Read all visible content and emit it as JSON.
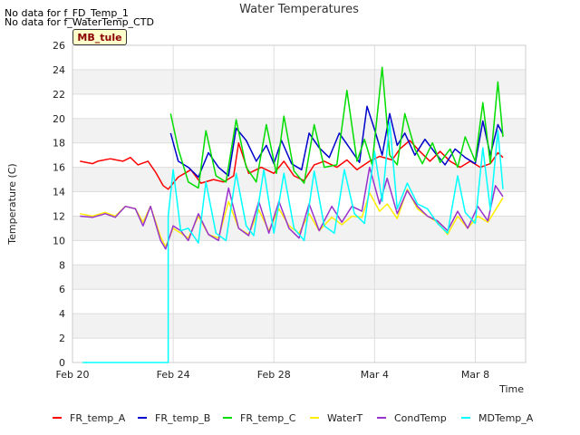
{
  "notices": [
    "No data for f_FD_Temp_1",
    "No data for f_WaterTemp_CTD"
  ],
  "tag_label": "MB_tule",
  "chart_data": {
    "type": "line",
    "title": "Water Temperatures",
    "xlabel": "Time",
    "ylabel": "Temperature (C)",
    "x_ticks": [
      "Feb 20",
      "Feb 24",
      "Feb 28",
      "Mar 4",
      "Mar 8"
    ],
    "x_tick_days": [
      0,
      4,
      8,
      12,
      16
    ],
    "xlim_days": [
      0,
      18
    ],
    "ylim": [
      0,
      26
    ],
    "y_ticks": [
      0,
      2,
      4,
      6,
      8,
      10,
      12,
      14,
      16,
      18,
      20,
      22,
      24,
      26
    ],
    "grid": true,
    "legend_position": "bottom",
    "series": [
      {
        "name": "FR_temp_A",
        "color": "#ff0000",
        "points": [
          [
            0.3,
            16.5
          ],
          [
            0.8,
            16.3
          ],
          [
            1.0,
            16.5
          ],
          [
            1.5,
            16.7
          ],
          [
            2.0,
            16.5
          ],
          [
            2.3,
            16.8
          ],
          [
            2.6,
            16.2
          ],
          [
            3.0,
            16.5
          ],
          [
            3.3,
            15.6
          ],
          [
            3.6,
            14.5
          ],
          [
            3.8,
            14.2
          ],
          [
            4.2,
            15.2
          ],
          [
            4.7,
            15.8
          ],
          [
            5.1,
            14.7
          ],
          [
            5.6,
            15.0
          ],
          [
            6.0,
            14.8
          ],
          [
            6.4,
            15.3
          ],
          [
            6.6,
            18.0
          ],
          [
            7.0,
            15.5
          ],
          [
            7.5,
            16.0
          ],
          [
            8.0,
            15.5
          ],
          [
            8.4,
            16.5
          ],
          [
            8.8,
            15.3
          ],
          [
            9.2,
            14.9
          ],
          [
            9.6,
            16.2
          ],
          [
            10.0,
            16.5
          ],
          [
            10.5,
            16.0
          ],
          [
            10.9,
            16.6
          ],
          [
            11.3,
            15.8
          ],
          [
            11.8,
            16.5
          ],
          [
            12.2,
            16.9
          ],
          [
            12.7,
            16.6
          ],
          [
            13.0,
            17.5
          ],
          [
            13.4,
            18.2
          ],
          [
            13.8,
            17.3
          ],
          [
            14.2,
            16.5
          ],
          [
            14.6,
            17.3
          ],
          [
            15.0,
            16.5
          ],
          [
            15.4,
            16.0
          ],
          [
            15.8,
            16.5
          ],
          [
            16.2,
            16.0
          ],
          [
            16.6,
            16.3
          ],
          [
            16.9,
            17.2
          ],
          [
            17.1,
            16.8
          ]
        ]
      },
      {
        "name": "FR_temp_B",
        "color": "#0000cc",
        "points": [
          [
            3.9,
            18.8
          ],
          [
            4.2,
            16.5
          ],
          [
            4.6,
            16.0
          ],
          [
            5.0,
            15.2
          ],
          [
            5.4,
            17.2
          ],
          [
            5.8,
            16.0
          ],
          [
            6.2,
            15.3
          ],
          [
            6.5,
            19.2
          ],
          [
            6.9,
            18.2
          ],
          [
            7.3,
            16.5
          ],
          [
            7.7,
            17.8
          ],
          [
            8.0,
            16.3
          ],
          [
            8.3,
            18.2
          ],
          [
            8.7,
            16.3
          ],
          [
            9.1,
            15.8
          ],
          [
            9.4,
            18.8
          ],
          [
            9.8,
            17.6
          ],
          [
            10.2,
            16.8
          ],
          [
            10.6,
            18.8
          ],
          [
            11.0,
            17.6
          ],
          [
            11.4,
            16.4
          ],
          [
            11.7,
            21.0
          ],
          [
            12.0,
            19.1
          ],
          [
            12.3,
            17.0
          ],
          [
            12.6,
            20.4
          ],
          [
            12.9,
            17.8
          ],
          [
            13.2,
            18.8
          ],
          [
            13.6,
            17.0
          ],
          [
            14.0,
            18.3
          ],
          [
            14.4,
            17.2
          ],
          [
            14.8,
            16.2
          ],
          [
            15.2,
            17.5
          ],
          [
            15.6,
            16.8
          ],
          [
            16.0,
            16.3
          ],
          [
            16.3,
            19.8
          ],
          [
            16.6,
            17.0
          ],
          [
            16.9,
            19.5
          ],
          [
            17.1,
            18.7
          ]
        ]
      },
      {
        "name": "FR_temp_C",
        "color": "#00dd00",
        "points": [
          [
            3.9,
            20.4
          ],
          [
            4.2,
            17.5
          ],
          [
            4.6,
            14.8
          ],
          [
            5.0,
            14.3
          ],
          [
            5.3,
            19.0
          ],
          [
            5.7,
            15.3
          ],
          [
            6.1,
            14.8
          ],
          [
            6.5,
            19.9
          ],
          [
            6.9,
            16.0
          ],
          [
            7.3,
            14.8
          ],
          [
            7.7,
            19.5
          ],
          [
            8.1,
            15.5
          ],
          [
            8.4,
            20.2
          ],
          [
            8.8,
            15.7
          ],
          [
            9.2,
            14.7
          ],
          [
            9.6,
            19.5
          ],
          [
            10.0,
            16.0
          ],
          [
            10.5,
            16.2
          ],
          [
            10.9,
            22.3
          ],
          [
            11.3,
            16.5
          ],
          [
            11.6,
            18.3
          ],
          [
            11.9,
            16.2
          ],
          [
            12.3,
            24.2
          ],
          [
            12.6,
            17.0
          ],
          [
            12.9,
            16.2
          ],
          [
            13.2,
            20.4
          ],
          [
            13.6,
            17.5
          ],
          [
            13.9,
            16.3
          ],
          [
            14.3,
            18.0
          ],
          [
            14.6,
            16.4
          ],
          [
            15.0,
            17.5
          ],
          [
            15.3,
            16.0
          ],
          [
            15.6,
            18.5
          ],
          [
            16.0,
            16.5
          ],
          [
            16.3,
            21.3
          ],
          [
            16.6,
            16.3
          ],
          [
            16.9,
            23.0
          ],
          [
            17.1,
            18.5
          ]
        ]
      },
      {
        "name": "WaterT",
        "color": "#ffee00",
        "points": [
          [
            0.3,
            12.2
          ],
          [
            0.8,
            12.0
          ],
          [
            1.3,
            12.3
          ],
          [
            1.7,
            12.0
          ],
          [
            2.1,
            12.8
          ],
          [
            2.5,
            12.6
          ],
          [
            2.8,
            11.5
          ],
          [
            3.1,
            12.8
          ],
          [
            3.5,
            10.3
          ],
          [
            3.7,
            9.5
          ],
          [
            4.0,
            11.0
          ],
          [
            4.3,
            10.6
          ],
          [
            4.6,
            10.2
          ],
          [
            5.0,
            12.0
          ],
          [
            5.4,
            10.5
          ],
          [
            5.8,
            10.2
          ],
          [
            6.2,
            13.2
          ],
          [
            6.6,
            11.0
          ],
          [
            7.0,
            10.5
          ],
          [
            7.4,
            12.5
          ],
          [
            7.8,
            10.8
          ],
          [
            8.2,
            12.6
          ],
          [
            8.6,
            11.2
          ],
          [
            9.0,
            10.6
          ],
          [
            9.4,
            12.2
          ],
          [
            9.8,
            10.8
          ],
          [
            10.3,
            11.9
          ],
          [
            10.7,
            11.3
          ],
          [
            11.1,
            12.0
          ],
          [
            11.5,
            11.9
          ],
          [
            11.8,
            13.9
          ],
          [
            12.2,
            12.4
          ],
          [
            12.5,
            13.0
          ],
          [
            12.9,
            11.8
          ],
          [
            13.3,
            14.2
          ],
          [
            13.7,
            12.6
          ],
          [
            14.1,
            12.0
          ],
          [
            14.5,
            11.5
          ],
          [
            14.9,
            10.5
          ],
          [
            15.3,
            12.0
          ],
          [
            15.7,
            11.0
          ],
          [
            16.1,
            12.0
          ],
          [
            16.5,
            11.5
          ],
          [
            16.8,
            12.5
          ],
          [
            17.1,
            13.5
          ]
        ]
      },
      {
        "name": "CondTemp",
        "color": "#9933cc",
        "points": [
          [
            0.3,
            12.0
          ],
          [
            0.8,
            11.9
          ],
          [
            1.3,
            12.2
          ],
          [
            1.7,
            11.9
          ],
          [
            2.1,
            12.8
          ],
          [
            2.5,
            12.6
          ],
          [
            2.8,
            11.2
          ],
          [
            3.1,
            12.8
          ],
          [
            3.5,
            10.0
          ],
          [
            3.7,
            9.3
          ],
          [
            4.0,
            11.2
          ],
          [
            4.3,
            10.8
          ],
          [
            4.6,
            10.0
          ],
          [
            5.0,
            12.2
          ],
          [
            5.4,
            10.5
          ],
          [
            5.8,
            10.0
          ],
          [
            6.2,
            14.3
          ],
          [
            6.6,
            11.0
          ],
          [
            7.0,
            10.4
          ],
          [
            7.4,
            13.2
          ],
          [
            7.8,
            10.6
          ],
          [
            8.2,
            13.2
          ],
          [
            8.6,
            11.0
          ],
          [
            9.0,
            10.2
          ],
          [
            9.4,
            13.0
          ],
          [
            9.8,
            10.8
          ],
          [
            10.3,
            12.8
          ],
          [
            10.7,
            11.5
          ],
          [
            11.1,
            12.8
          ],
          [
            11.5,
            12.4
          ],
          [
            11.8,
            16.0
          ],
          [
            12.2,
            13.0
          ],
          [
            12.5,
            15.1
          ],
          [
            12.9,
            12.2
          ],
          [
            13.3,
            14.1
          ],
          [
            13.7,
            12.8
          ],
          [
            14.1,
            12.0
          ],
          [
            14.5,
            11.6
          ],
          [
            14.9,
            10.8
          ],
          [
            15.3,
            12.4
          ],
          [
            15.7,
            11.0
          ],
          [
            16.1,
            12.8
          ],
          [
            16.5,
            11.6
          ],
          [
            16.8,
            14.5
          ],
          [
            17.1,
            13.6
          ]
        ]
      },
      {
        "name": "MDTemp_A",
        "color": "#00ffff",
        "points": [
          [
            0.4,
            0
          ],
          [
            3.8,
            0
          ],
          [
            3.8,
            12.0
          ],
          [
            4.0,
            15.8
          ],
          [
            4.3,
            10.8
          ],
          [
            4.6,
            11.0
          ],
          [
            5.0,
            9.8
          ],
          [
            5.3,
            14.8
          ],
          [
            5.7,
            10.6
          ],
          [
            6.1,
            10.0
          ],
          [
            6.5,
            15.5
          ],
          [
            6.9,
            11.2
          ],
          [
            7.2,
            10.4
          ],
          [
            7.6,
            15.8
          ],
          [
            8.0,
            10.6
          ],
          [
            8.4,
            15.5
          ],
          [
            8.8,
            11.0
          ],
          [
            9.2,
            10.0
          ],
          [
            9.6,
            15.7
          ],
          [
            10.0,
            11.2
          ],
          [
            10.4,
            10.6
          ],
          [
            10.8,
            15.8
          ],
          [
            11.2,
            12.2
          ],
          [
            11.6,
            11.4
          ],
          [
            12.0,
            17.3
          ],
          [
            12.3,
            13.2
          ],
          [
            12.6,
            19.7
          ],
          [
            12.9,
            12.6
          ],
          [
            13.3,
            14.7
          ],
          [
            13.7,
            13.0
          ],
          [
            14.1,
            12.6
          ],
          [
            14.5,
            11.4
          ],
          [
            14.9,
            10.6
          ],
          [
            15.3,
            15.3
          ],
          [
            15.6,
            12.3
          ],
          [
            16.0,
            11.4
          ],
          [
            16.3,
            17.6
          ],
          [
            16.6,
            12.5
          ],
          [
            16.9,
            19.0
          ],
          [
            17.1,
            14.2
          ]
        ]
      }
    ]
  }
}
